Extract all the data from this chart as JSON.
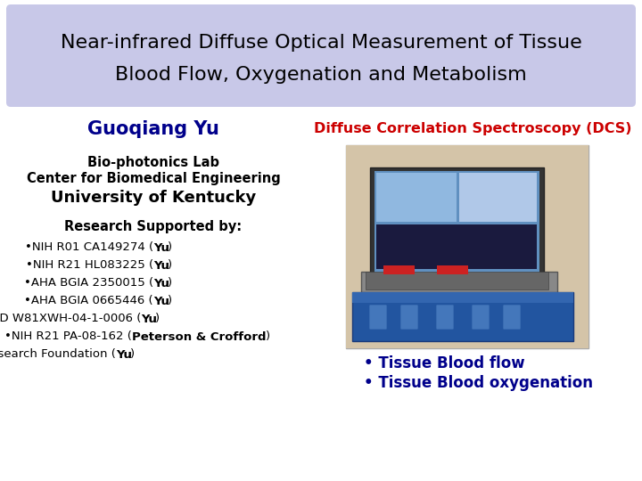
{
  "title_line1": "Near-infrared Diffuse Optical Measurement of Tissue",
  "title_line2": "Blood Flow, Oxygenation and Metabolism",
  "title_bg_color": "#c8c8e8",
  "title_text_color": "#000000",
  "author_name": "Guoqiang Yu",
  "author_color": "#00008B",
  "affil1": "Bio-photonics Lab",
  "affil2": "Center for Biomedical Engineering",
  "affil3": "University of Kentucky",
  "research_header": "Research Supported by:",
  "dcs_title": "Diffuse Correlation Spectroscopy (DCS)",
  "dcs_title_color": "#CC0000",
  "bullet1": "• Tissue Blood flow",
  "bullet2": "• Tissue Blood oxygenation",
  "bullet_color": "#00008B",
  "bg_color": "#ffffff"
}
